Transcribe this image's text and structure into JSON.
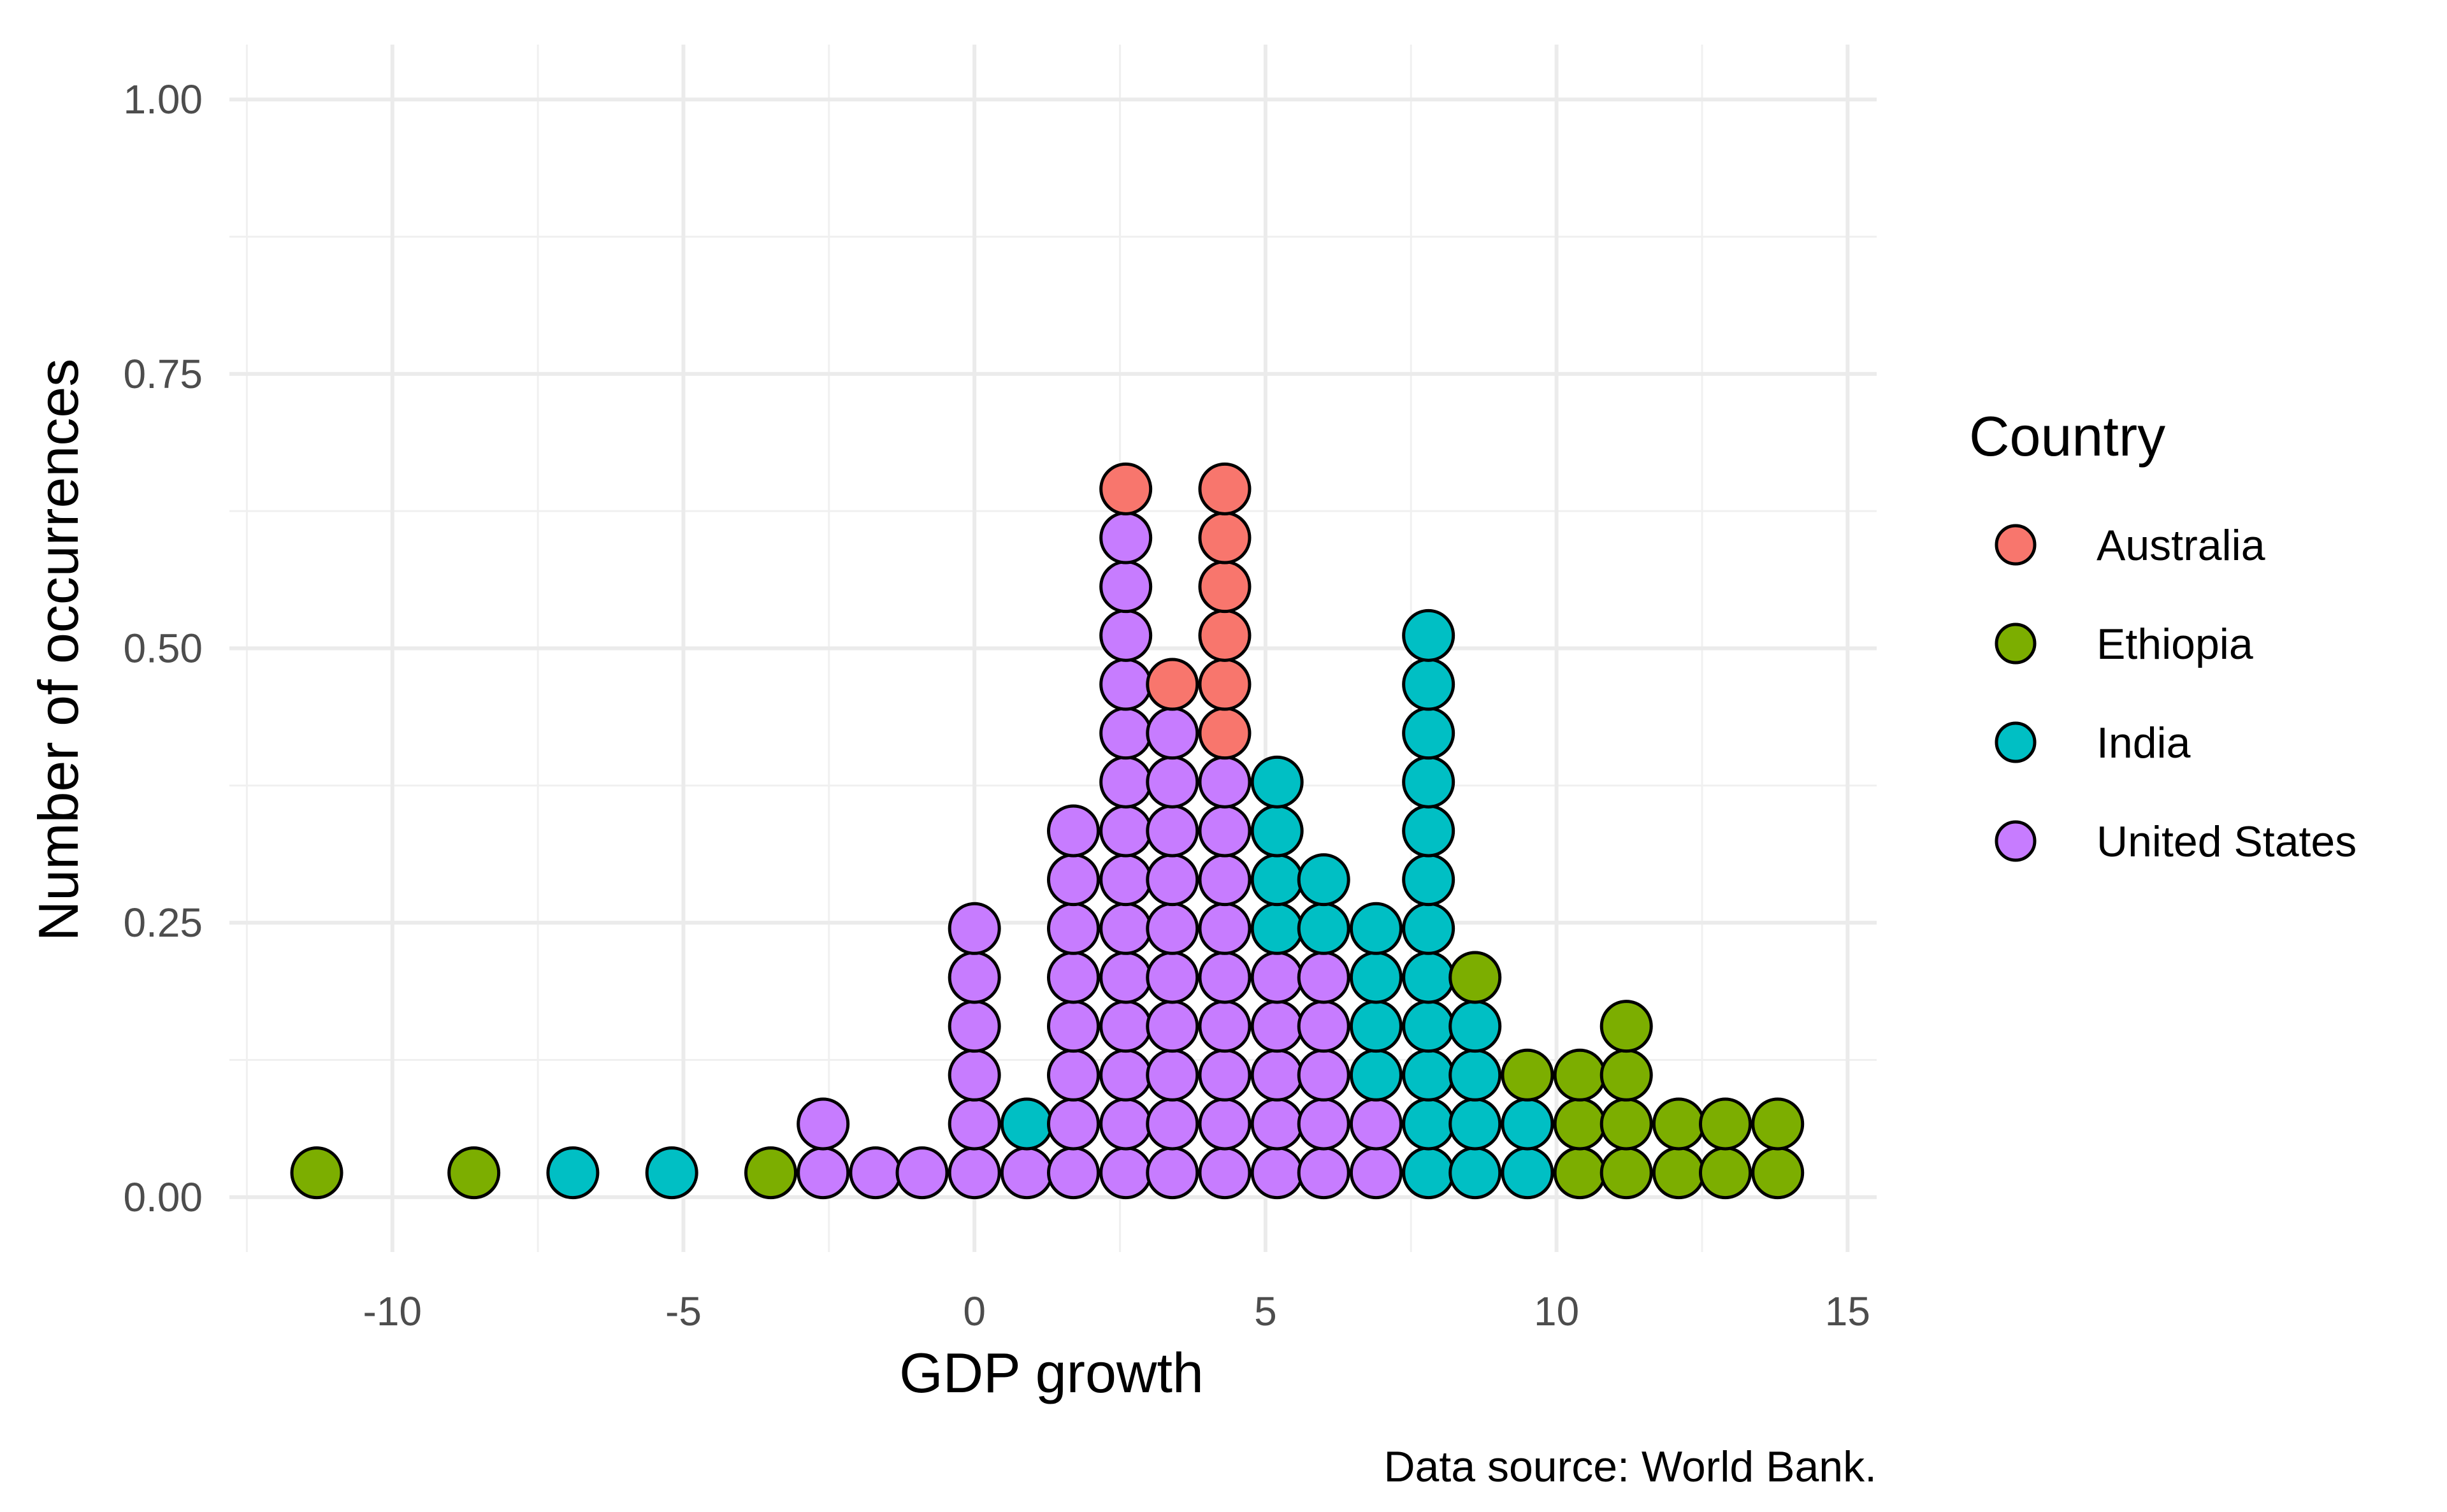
{
  "chart_data": {
    "type": "scatter",
    "subtype": "dotplot",
    "xlabel": "GDP growth",
    "ylabel": "Number of occurrences",
    "caption": "Data source: World Bank.",
    "xlim": [
      -12.8,
      15.5
    ],
    "ylim": [
      -0.05,
      1.05
    ],
    "x_ticks": [
      -10,
      -5,
      0,
      5,
      10,
      15
    ],
    "y_ticks": [
      0.0,
      0.25,
      0.5,
      0.75,
      1.0
    ],
    "x_tick_labels": [
      "-10",
      "-5",
      "0",
      "5",
      "10",
      "15"
    ],
    "y_tick_labels": [
      "0.00",
      "0.25",
      "0.50",
      "0.75",
      "1.00"
    ],
    "grid": true,
    "legend": {
      "title": "Country",
      "position": "right",
      "entries": [
        {
          "name": "Australia",
          "color": "#F8766D"
        },
        {
          "name": "Ethiopia",
          "color": "#7CAE00"
        },
        {
          "name": "India",
          "color": "#00BFC4"
        },
        {
          "name": "United States",
          "color": "#C77CFF"
        }
      ]
    },
    "stack_unit": 0.0445,
    "stack_base": 0.0222,
    "stacks": [
      {
        "x": -11.3,
        "series": [
          "Ethiopia"
        ]
      },
      {
        "x": -8.6,
        "series": [
          "Ethiopia"
        ]
      },
      {
        "x": -6.9,
        "series": [
          "India"
        ]
      },
      {
        "x": -5.2,
        "series": [
          "India"
        ]
      },
      {
        "x": -3.5,
        "series": [
          "Ethiopia"
        ]
      },
      {
        "x": -2.6,
        "series": [
          "United States",
          "United States"
        ]
      },
      {
        "x": -1.7,
        "series": [
          "United States"
        ]
      },
      {
        "x": -0.9,
        "series": [
          "United States"
        ]
      },
      {
        "x": 0.0,
        "series": [
          "United States",
          "United States",
          "United States",
          "United States",
          "United States",
          "United States"
        ]
      },
      {
        "x": 0.9,
        "series": [
          "United States",
          "India"
        ]
      },
      {
        "x": 1.7,
        "series": [
          "United States",
          "United States",
          "United States",
          "United States",
          "United States",
          "United States",
          "United States",
          "United States"
        ]
      },
      {
        "x": 2.6,
        "series": [
          "United States",
          "United States",
          "United States",
          "United States",
          "United States",
          "United States",
          "United States",
          "United States",
          "United States",
          "United States",
          "United States",
          "United States",
          "United States",
          "United States",
          "Australia"
        ]
      },
      {
        "x": 3.4,
        "series": [
          "United States",
          "United States",
          "United States",
          "United States",
          "United States",
          "United States",
          "United States",
          "United States",
          "United States",
          "United States",
          "Australia"
        ]
      },
      {
        "x": 4.3,
        "series": [
          "United States",
          "United States",
          "United States",
          "United States",
          "United States",
          "United States",
          "United States",
          "United States",
          "United States",
          "Australia",
          "Australia",
          "Australia",
          "Australia",
          "Australia",
          "Australia"
        ]
      },
      {
        "x": 5.2,
        "series": [
          "United States",
          "United States",
          "United States",
          "United States",
          "United States",
          "India",
          "India",
          "India",
          "India"
        ]
      },
      {
        "x": 6.0,
        "series": [
          "United States",
          "United States",
          "United States",
          "United States",
          "United States",
          "India",
          "India"
        ]
      },
      {
        "x": 6.9,
        "series": [
          "United States",
          "United States",
          "India",
          "India",
          "India",
          "India"
        ]
      },
      {
        "x": 7.8,
        "series": [
          "India",
          "India",
          "India",
          "India",
          "India",
          "India",
          "India",
          "India",
          "India",
          "India",
          "India",
          "India"
        ]
      },
      {
        "x": 8.6,
        "series": [
          "India",
          "India",
          "India",
          "India",
          "Ethiopia"
        ]
      },
      {
        "x": 9.5,
        "series": [
          "India",
          "India",
          "Ethiopia"
        ]
      },
      {
        "x": 10.4,
        "series": [
          "Ethiopia",
          "Ethiopia",
          "Ethiopia"
        ]
      },
      {
        "x": 11.2,
        "series": [
          "Ethiopia",
          "Ethiopia",
          "Ethiopia",
          "Ethiopia"
        ]
      },
      {
        "x": 12.1,
        "series": [
          "Ethiopia",
          "Ethiopia"
        ]
      },
      {
        "x": 12.9,
        "series": [
          "Ethiopia",
          "Ethiopia"
        ]
      },
      {
        "x": 13.8,
        "series": [
          "Ethiopia",
          "Ethiopia"
        ]
      }
    ]
  }
}
